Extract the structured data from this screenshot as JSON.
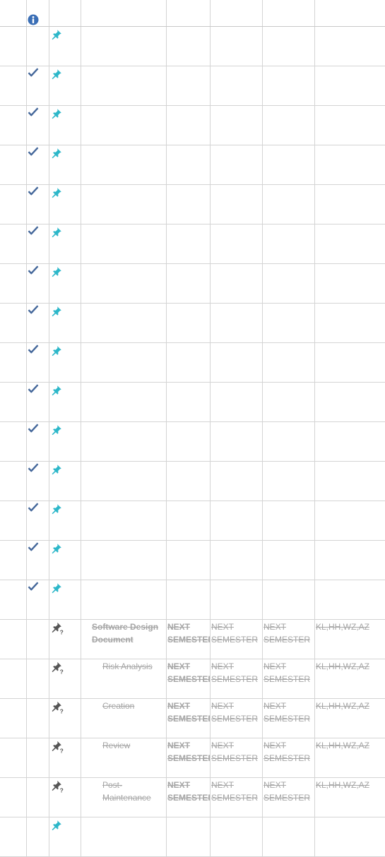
{
  "colors": {
    "check": "#44679a",
    "pin": "#2cb7c9",
    "pin_dark": "#555555",
    "info": "#3b6fb6",
    "muted_text": "#a6a6a6",
    "grid": "#d4d4d4"
  },
  "header": {
    "columns": [
      "",
      "info-icon",
      "",
      "",
      "",
      "",
      "",
      ""
    ]
  },
  "rows": [
    {
      "status": "",
      "pin": "pin"
    },
    {
      "status": "check",
      "pin": "pin"
    },
    {
      "status": "check",
      "pin": "pin"
    },
    {
      "status": "check",
      "pin": "pin"
    },
    {
      "status": "check",
      "pin": "pin"
    },
    {
      "status": "check",
      "pin": "pin"
    },
    {
      "status": "check",
      "pin": "pin"
    },
    {
      "status": "check",
      "pin": "pin"
    },
    {
      "status": "check",
      "pin": "pin"
    },
    {
      "status": "check",
      "pin": "pin"
    },
    {
      "status": "check",
      "pin": "pin"
    },
    {
      "status": "check",
      "pin": "pin"
    },
    {
      "status": "check",
      "pin": "pin"
    },
    {
      "status": "check",
      "pin": "pin"
    },
    {
      "status": "check",
      "pin": "pin"
    },
    {
      "status": "",
      "pin": "pin-question",
      "task": "Software Design Document",
      "level": 0,
      "c4": "NEXT SEMESTER",
      "c5": "NEXT SEMESTER",
      "c6": "NEXT SEMESTER",
      "c7": "KL,HH,WZ,AZ"
    },
    {
      "status": "",
      "pin": "pin-question",
      "task": "Risk Analysis",
      "level": 1,
      "c4": "NEXT SEMESTER",
      "c5": "NEXT SEMESTER",
      "c6": "NEXT SEMESTER",
      "c7": "KL,HH,WZ,AZ"
    },
    {
      "status": "",
      "pin": "pin-question",
      "task": "Creation",
      "level": 1,
      "c4": "NEXT SEMESTER",
      "c5": "NEXT SEMESTER",
      "c6": "NEXT SEMESTER",
      "c7": "KL,HH,WZ,AZ"
    },
    {
      "status": "",
      "pin": "pin-question",
      "task": "Review",
      "level": 1,
      "c4": "NEXT SEMESTER",
      "c5": "NEXT SEMESTER",
      "c6": "NEXT SEMESTER",
      "c7": "KL,HH,WZ,AZ"
    },
    {
      "status": "",
      "pin": "pin-question",
      "task": "Post-Maintenance",
      "level": 1,
      "c4": "NEXT SEMESTER",
      "c5": "NEXT SEMESTER",
      "c6": "NEXT SEMESTER",
      "c7": "KL,HH,WZ,AZ"
    },
    {
      "status": "",
      "pin": "pin"
    }
  ]
}
